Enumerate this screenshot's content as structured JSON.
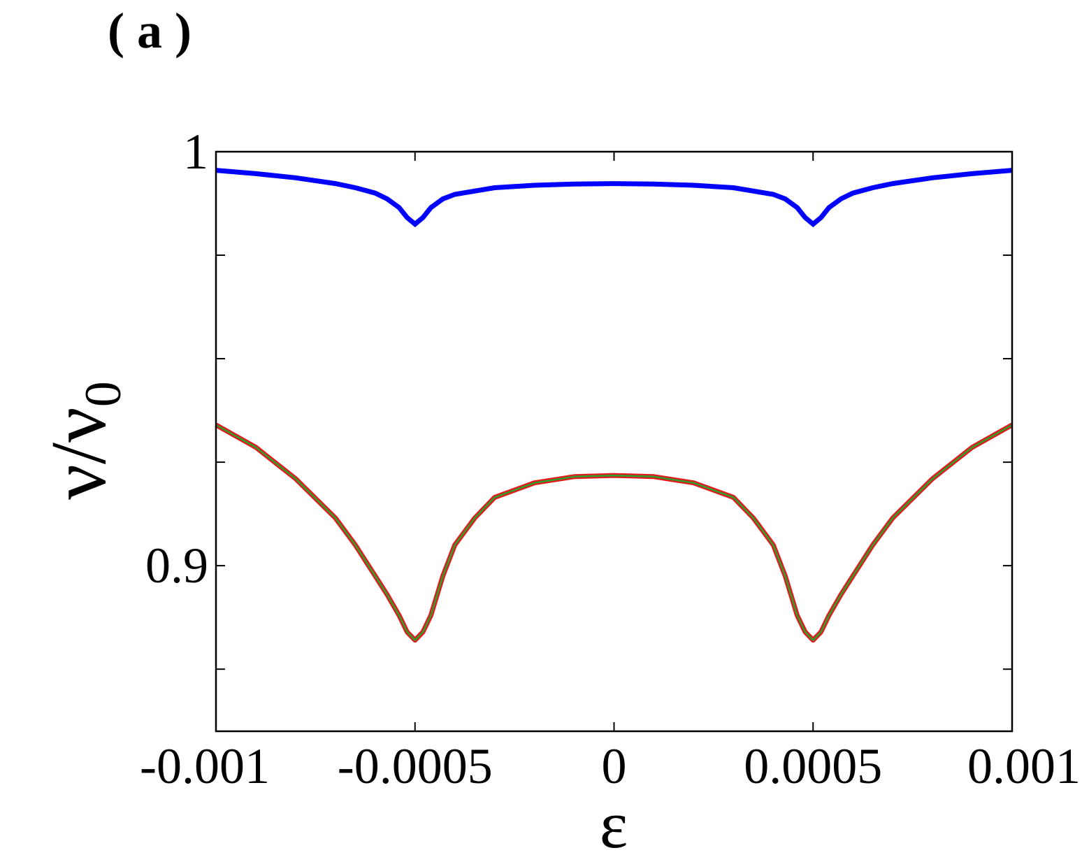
{
  "panel_label": "( a )",
  "chart_data": {
    "type": "line",
    "title": "",
    "xlabel": "ε",
    "ylabel": "ν/ν",
    "ylabel_subscript": "0",
    "xlim": [
      -0.001,
      0.001
    ],
    "ylim": [
      0.86,
      1.0
    ],
    "xticks": [
      -0.001,
      -0.0005,
      0,
      0.0005,
      0.001
    ],
    "xtick_labels": [
      "-0.001",
      "-0.0005",
      "0",
      "0.0005",
      "0.001"
    ],
    "yticks": [
      0.86,
      0.875,
      0.9,
      0.925,
      0.95,
      0.975,
      1.0
    ],
    "ytick_labels": [
      "0.9",
      "1"
    ],
    "ytick_label_values": [
      0.9,
      1.0
    ],
    "grid": false,
    "series": [
      {
        "color": "#0000ff",
        "x": [
          -0.001,
          -0.0009,
          -0.0008,
          -0.0007,
          -0.00065,
          -0.0006,
          -0.00057,
          -0.00054,
          -0.00052,
          -0.0005,
          -0.00048,
          -0.00046,
          -0.00043,
          -0.0004,
          -0.0003,
          -0.0002,
          -0.0001,
          0,
          0.0001,
          0.0002,
          0.0003,
          0.0004,
          0.00043,
          0.00046,
          0.00048,
          0.0005,
          0.00052,
          0.00054,
          0.00057,
          0.0006,
          0.00065,
          0.0007,
          0.0008,
          0.0009,
          0.001
        ],
        "y": [
          0.9955,
          0.9947,
          0.9937,
          0.9923,
          0.9913,
          0.99,
          0.9886,
          0.9865,
          0.9841,
          0.9825,
          0.9841,
          0.9865,
          0.9886,
          0.9897,
          0.9913,
          0.9919,
          0.9922,
          0.9923,
          0.9922,
          0.9919,
          0.9913,
          0.9897,
          0.9886,
          0.9865,
          0.9841,
          0.9825,
          0.9841,
          0.9865,
          0.9886,
          0.99,
          0.9913,
          0.9923,
          0.9937,
          0.9947,
          0.9955
        ]
      },
      {
        "color": "#2ca02c",
        "edge_color": "#e31a1c",
        "x": [
          -0.001,
          -0.0009,
          -0.0008,
          -0.0007,
          -0.00065,
          -0.0006,
          -0.00057,
          -0.00054,
          -0.00052,
          -0.0005,
          -0.00048,
          -0.00046,
          -0.00043,
          -0.0004,
          -0.00035,
          -0.0003,
          -0.0002,
          -0.0001,
          0,
          0.0001,
          0.0002,
          0.0003,
          0.00035,
          0.0004,
          0.00043,
          0.00046,
          0.00048,
          0.0005,
          0.00052,
          0.00054,
          0.00057,
          0.0006,
          0.00065,
          0.0007,
          0.0008,
          0.0009,
          0.001
        ],
        "y": [
          0.934,
          0.9286,
          0.921,
          0.9115,
          0.905,
          0.8975,
          0.893,
          0.888,
          0.884,
          0.882,
          0.884,
          0.888,
          0.8975,
          0.905,
          0.9115,
          0.9165,
          0.92,
          0.9215,
          0.9218,
          0.9215,
          0.92,
          0.9165,
          0.9115,
          0.905,
          0.8975,
          0.888,
          0.884,
          0.882,
          0.884,
          0.888,
          0.893,
          0.8975,
          0.905,
          0.9115,
          0.921,
          0.9286,
          0.934
        ]
      }
    ]
  }
}
